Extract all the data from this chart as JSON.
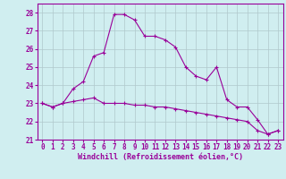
{
  "xlabel": "Windchill (Refroidissement éolien,°C)",
  "bg_color": "#d0eef0",
  "grid_color": "#b0c8cc",
  "line_color": "#990099",
  "x_ticks": [
    0,
    1,
    2,
    3,
    4,
    5,
    6,
    7,
    8,
    9,
    10,
    11,
    12,
    13,
    14,
    15,
    16,
    17,
    18,
    19,
    20,
    21,
    22,
    23
  ],
  "ylim": [
    21,
    28.5
  ],
  "yticks": [
    21,
    22,
    23,
    24,
    25,
    26,
    27,
    28
  ],
  "curve1_x": [
    0,
    1,
    2,
    3,
    4,
    5,
    6,
    7,
    8,
    9,
    10,
    11,
    12,
    13,
    14,
    15,
    16,
    17,
    18,
    19,
    20,
    21,
    22,
    23
  ],
  "curve1_y": [
    23.0,
    22.8,
    23.0,
    23.8,
    24.2,
    25.6,
    25.8,
    27.9,
    27.9,
    27.6,
    26.7,
    26.7,
    26.5,
    26.1,
    25.0,
    24.5,
    24.3,
    25.0,
    23.2,
    22.8,
    22.8,
    22.1,
    21.3,
    21.5
  ],
  "curve2_x": [
    0,
    1,
    2,
    3,
    4,
    5,
    6,
    7,
    8,
    9,
    10,
    11,
    12,
    13,
    14,
    15,
    16,
    17,
    18,
    19,
    20,
    21,
    22,
    23
  ],
  "curve2_y": [
    23.0,
    22.8,
    23.0,
    23.1,
    23.2,
    23.3,
    23.0,
    23.0,
    23.0,
    22.9,
    22.9,
    22.8,
    22.8,
    22.7,
    22.6,
    22.5,
    22.4,
    22.3,
    22.2,
    22.1,
    22.0,
    21.5,
    21.3,
    21.5
  ],
  "tick_fontsize": 5.5,
  "xlabel_fontsize": 6,
  "figsize": [
    3.2,
    2.0
  ],
  "dpi": 100
}
